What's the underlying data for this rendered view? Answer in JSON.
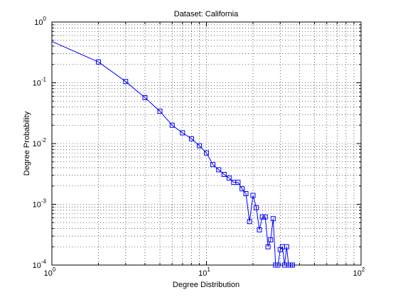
{
  "chart_data": {
    "type": "line",
    "title": "Dataset: California",
    "xlabel": "Degree Distribution",
    "ylabel": "Degree Probability",
    "xscale": "log",
    "yscale": "log",
    "xlim": [
      1,
      100
    ],
    "ylim": [
      0.0001,
      1
    ],
    "grid": true,
    "x_tick_labels": [
      {
        "base": "10",
        "exp": "0",
        "value": 1
      },
      {
        "base": "10",
        "exp": "1",
        "value": 10
      },
      {
        "base": "10",
        "exp": "2",
        "value": 100
      }
    ],
    "y_tick_labels": [
      {
        "base": "10",
        "exp": "0",
        "value": 1
      },
      {
        "base": "10",
        "exp": "-1",
        "value": 0.1
      },
      {
        "base": "10",
        "exp": "-2",
        "value": 0.01
      },
      {
        "base": "10",
        "exp": "-3",
        "value": 0.001
      },
      {
        "base": "10",
        "exp": "-4",
        "value": 0.0001
      }
    ],
    "series": [
      {
        "color": "#0000ff",
        "marker": "square",
        "line_start": [
          1,
          0.48
        ],
        "x": [
          2,
          3,
          4,
          5,
          6,
          7,
          8,
          9,
          10,
          11,
          12,
          13,
          14,
          15,
          16,
          17,
          18,
          19,
          20,
          21,
          22,
          23,
          24,
          25,
          26,
          27,
          28,
          29,
          30,
          31,
          32,
          33,
          34,
          35,
          36
        ],
        "y": [
          0.22,
          0.105,
          0.057,
          0.034,
          0.02,
          0.015,
          0.012,
          0.0092,
          0.007,
          0.0045,
          0.0037,
          0.0031,
          0.0027,
          0.0023,
          0.0023,
          0.0018,
          0.0015,
          0.00052,
          0.0014,
          0.00088,
          0.00038,
          0.00062,
          0.00062,
          0.0002,
          0.00026,
          0.00058,
          0.0001,
          0.0001,
          0.00018,
          0.0002,
          0.0001,
          0.0002,
          0.0001,
          0.0001,
          0.0001
        ]
      }
    ]
  }
}
